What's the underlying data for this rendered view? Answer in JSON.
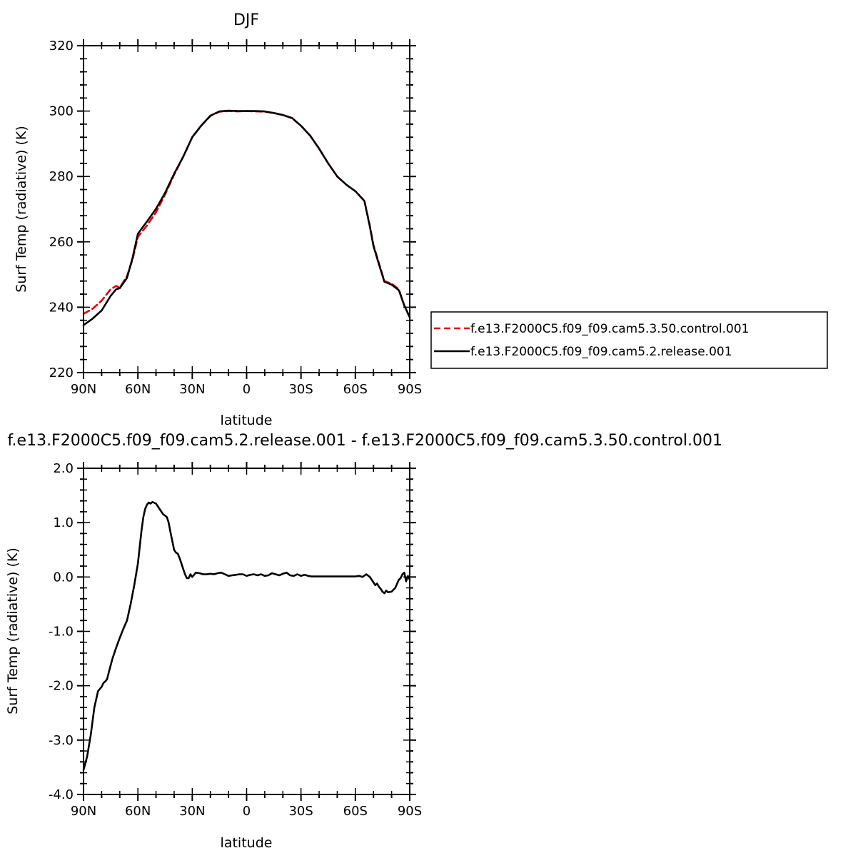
{
  "chart_data": [
    {
      "type": "line",
      "title": "DJF",
      "xlabel": "latitude",
      "ylabel": "Surf Temp (radiative) (K)",
      "xlim": [
        90,
        -90
      ],
      "ylim": [
        220,
        320
      ],
      "x_tick_labels": [
        "90N",
        "60N",
        "30N",
        "0",
        "30S",
        "60S",
        "90S"
      ],
      "y_tick_labels": [
        "220",
        "240",
        "260",
        "280",
        "300",
        "320"
      ],
      "legend_position": "right",
      "series": [
        {
          "name": "f.e13.F2000C5.f09_f09.cam5.3.50.control.001",
          "color": "#e00000",
          "dash": "dashed",
          "x": [
            90,
            85,
            80,
            75,
            72,
            70,
            66,
            63,
            60,
            55,
            50,
            45,
            40,
            35,
            30,
            25,
            20,
            15,
            10,
            5,
            0,
            -5,
            -10,
            -15,
            -20,
            -25,
            -30,
            -35,
            -40,
            -45,
            -50,
            -55,
            -60,
            -65,
            -68,
            -70,
            -73,
            -76,
            -80,
            -84,
            -87,
            -90
          ],
          "y": [
            238.0,
            239.5,
            242.0,
            245.5,
            246.5,
            246.0,
            249.5,
            254.5,
            261.5,
            265.0,
            269.0,
            274.5,
            280.5,
            286.0,
            292.0,
            295.5,
            298.5,
            299.8,
            300.0,
            299.9,
            300.0,
            299.9,
            299.8,
            299.4,
            298.8,
            297.8,
            295.5,
            292.5,
            288.5,
            284.0,
            280.0,
            277.5,
            275.5,
            272.5,
            265.0,
            259.0,
            253.5,
            248.0,
            247.2,
            245.5,
            240.5,
            237.0
          ]
        },
        {
          "name": "f.e13.F2000C5.f09_f09.cam5.2.release.001",
          "color": "#000000",
          "dash": "solid",
          "x": [
            90,
            85,
            80,
            75,
            72,
            70,
            66,
            63,
            60,
            55,
            50,
            45,
            40,
            35,
            30,
            25,
            20,
            15,
            10,
            5,
            0,
            -5,
            -10,
            -15,
            -20,
            -25,
            -30,
            -35,
            -40,
            -45,
            -50,
            -55,
            -60,
            -65,
            -68,
            -70,
            -73,
            -76,
            -80,
            -84,
            -87,
            -90
          ],
          "y": [
            234.5,
            236.5,
            239.0,
            243.5,
            245.5,
            245.8,
            249.0,
            255.0,
            262.5,
            266.2,
            270.1,
            275.0,
            280.8,
            286.0,
            292.0,
            295.6,
            298.6,
            299.9,
            300.1,
            300.0,
            300.0,
            300.0,
            299.9,
            299.4,
            298.8,
            297.9,
            295.5,
            292.5,
            288.5,
            284.0,
            280.0,
            277.5,
            275.5,
            272.5,
            264.7,
            258.7,
            253.2,
            247.8,
            246.9,
            245.2,
            240.5,
            236.9
          ]
        }
      ]
    },
    {
      "type": "line",
      "title": "f.e13.F2000C5.f09_f09.cam5.2.release.001 - f.e13.F2000C5.f09_f09.cam5.3.50.control.001",
      "xlabel": "latitude",
      "ylabel": "Surf Temp (radiative) (K)",
      "xlim": [
        90,
        -90
      ],
      "ylim": [
        -4.0,
        2.0
      ],
      "x_tick_labels": [
        "90N",
        "60N",
        "30N",
        "0",
        "30S",
        "60S",
        "90S"
      ],
      "y_tick_labels": [
        "-4.0",
        "-3.0",
        "-2.0",
        "-1.0",
        "0.0",
        "1.0",
        "2.0"
      ],
      "series": [
        {
          "color": "#000000",
          "dash": "solid",
          "x": [
            90,
            88,
            86,
            84,
            82,
            80,
            79,
            78,
            77,
            76,
            74,
            72,
            70,
            68,
            66,
            64,
            62,
            60,
            58,
            57,
            56,
            55,
            54,
            53,
            52,
            50,
            48,
            46,
            45,
            44,
            43,
            42,
            40,
            39,
            38,
            37,
            36,
            35,
            34,
            33,
            32,
            31,
            30,
            28,
            26,
            24,
            22,
            20,
            18,
            16,
            14,
            12,
            10,
            8,
            6,
            4,
            2,
            0,
            -2,
            -4,
            -6,
            -8,
            -10,
            -12,
            -14,
            -16,
            -18,
            -20,
            -22,
            -24,
            -26,
            -28,
            -30,
            -32,
            -34,
            -36,
            -38,
            -40,
            -45,
            -50,
            -55,
            -60,
            -62,
            -64,
            -66,
            -68,
            -69,
            -70,
            -71,
            -72,
            -73,
            -74,
            -75,
            -76,
            -77,
            -78,
            -80,
            -82,
            -84,
            -85,
            -86,
            -87,
            -88,
            -89,
            -90
          ],
          "y": [
            -3.55,
            -3.3,
            -2.9,
            -2.4,
            -2.1,
            -2.02,
            -1.95,
            -1.92,
            -1.88,
            -1.75,
            -1.5,
            -1.3,
            -1.12,
            -0.95,
            -0.8,
            -0.5,
            -0.15,
            0.25,
            0.85,
            1.1,
            1.25,
            1.33,
            1.37,
            1.35,
            1.38,
            1.35,
            1.25,
            1.15,
            1.13,
            1.1,
            1.0,
            0.82,
            0.5,
            0.45,
            0.43,
            0.35,
            0.25,
            0.15,
            0.05,
            -0.02,
            -0.02,
            0.05,
            0.0,
            0.08,
            0.07,
            0.05,
            0.05,
            0.06,
            0.05,
            0.07,
            0.08,
            0.05,
            0.02,
            0.03,
            0.04,
            0.05,
            0.05,
            0.02,
            0.04,
            0.05,
            0.03,
            0.05,
            0.02,
            0.03,
            0.07,
            0.05,
            0.03,
            0.06,
            0.08,
            0.03,
            0.02,
            0.05,
            0.02,
            0.04,
            0.02,
            0.01,
            0.01,
            0.01,
            0.01,
            0.01,
            0.01,
            0.01,
            0.02,
            0.0,
            0.05,
            0.0,
            -0.05,
            -0.1,
            -0.15,
            -0.12,
            -0.18,
            -0.22,
            -0.27,
            -0.3,
            -0.25,
            -0.28,
            -0.27,
            -0.2,
            -0.05,
            -0.02,
            0.05,
            0.08,
            -0.08,
            0.02,
            -0.05
          ]
        }
      ]
    }
  ]
}
